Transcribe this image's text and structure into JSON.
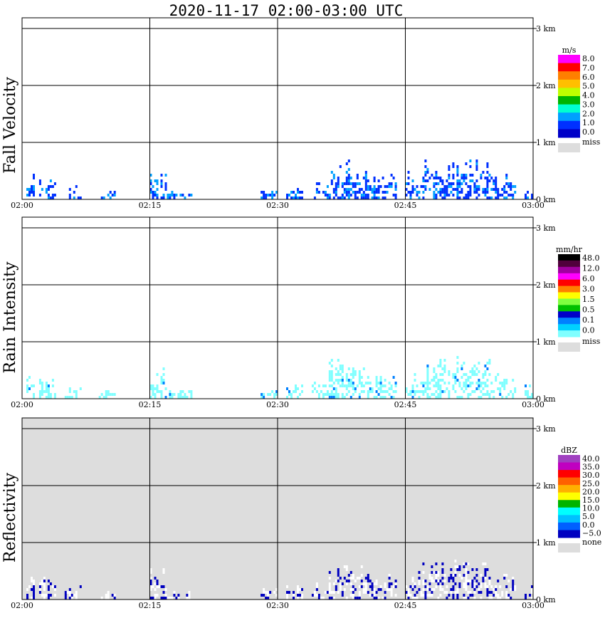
{
  "title": "2020-11-17   02:00-03:00 UTC",
  "time_ticks": [
    "02:00",
    "02:15",
    "02:30",
    "02:45",
    "03:00"
  ],
  "height_ticks": [
    "0 km",
    "1 km",
    "2 km",
    "3 km"
  ],
  "panels": [
    {
      "label": "Fall Velocity",
      "units": "m/s",
      "background": "#ffffff",
      "colorbar": {
        "labels": [
          "8.0",
          "7.0",
          "6.0",
          "5.0",
          "4.0",
          "3.0",
          "2.0",
          "1.0",
          "0.0"
        ],
        "colors": [
          "#ff00ff",
          "#ff0000",
          "#ff7f00",
          "#ffbf00",
          "#bfff00",
          "#00b400",
          "#00ffd0",
          "#00a0ff",
          "#0030ff",
          "#0000c8"
        ],
        "missing_label": "miss",
        "missing_color": "#dddddd"
      }
    },
    {
      "label": "Rain Intensity",
      "units": "mm/hr",
      "background": "#ffffff",
      "colorbar": {
        "labels": [
          "48.0",
          "12.0",
          "6.0",
          "3.0",
          "1.5",
          "0.5",
          "0.1",
          "0.0"
        ],
        "colors": [
          "#000000",
          "#50003c",
          "#a000a0",
          "#ff00ff",
          "#ff0000",
          "#ff8000",
          "#ffff00",
          "#80ff40",
          "#00c000",
          "#0000c8",
          "#0080ff",
          "#00d0ff",
          "#80ffff"
        ],
        "missing_label": "miss",
        "missing_color": "#dddddd"
      }
    },
    {
      "label": "Reflectivity",
      "units": "dBZ",
      "background": "#dddddd",
      "colorbar": {
        "labels": [
          "40.0",
          "35.0",
          "30.0",
          "25.0",
          "20.0",
          "15.0",
          "10.0",
          "5.0",
          "0.0",
          "−5.0"
        ],
        "colors": [
          "#a040c0",
          "#c000c0",
          "#ff0000",
          "#ff6000",
          "#ffb000",
          "#ffff00",
          "#00b400",
          "#00ffff",
          "#00c0ff",
          "#0060ff",
          "#0000c0"
        ],
        "missing_label": "none",
        "missing_color": "#dddddd"
      }
    }
  ],
  "colors": {
    "fall_velocity_main": "#0030ff",
    "fall_velocity_light": "#00a0ff",
    "rain_light": "#80ffff",
    "rain_mid": "#0080ff",
    "reflectivity_white": "#ffffff",
    "reflectivity_blue": "#0000c0"
  }
}
